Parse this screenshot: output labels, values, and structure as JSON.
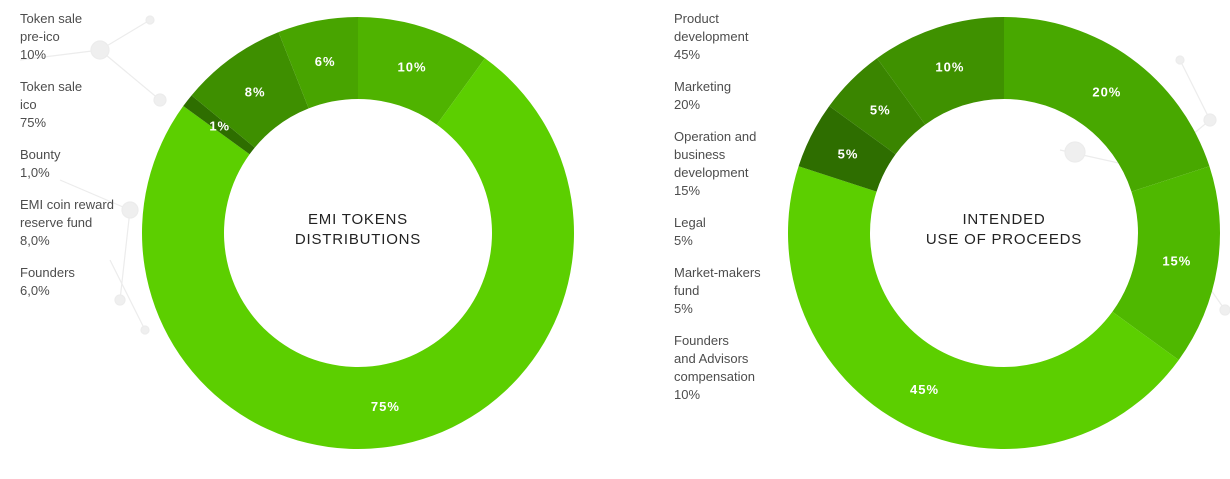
{
  "chart_data": [
    {
      "type": "pie",
      "title_lines": [
        "EMI  TOKENS",
        "DISTRIBUTIONS"
      ],
      "slices": [
        {
          "label": "10%",
          "value": 10,
          "color": "#4fb300"
        },
        {
          "label": "75%",
          "value": 75,
          "color": "#5ccf00"
        },
        {
          "label": "1%",
          "value": 1,
          "color": "#2e6e00"
        },
        {
          "label": "8%",
          "value": 8,
          "color": "#3e8f00"
        },
        {
          "label": "6%",
          "value": 6,
          "color": "#48a400"
        }
      ],
      "legend": [
        {
          "lines": [
            "Token sale",
            "pre-ico"
          ],
          "value": "10%"
        },
        {
          "lines": [
            "Token sale",
            "ico"
          ],
          "value": "75%"
        },
        {
          "lines": [
            "Bounty"
          ],
          "value": "1,0%"
        },
        {
          "lines": [
            "EMI coin reward",
            "reserve fund"
          ],
          "value": "8,0%"
        },
        {
          "lines": [
            "Founders"
          ],
          "value": "6,0%"
        }
      ]
    },
    {
      "type": "pie",
      "title_lines": [
        "INTENDED",
        "USE OF PROCEEDS"
      ],
      "slices": [
        {
          "label": "20%",
          "value": 20,
          "color": "#48a800"
        },
        {
          "label": "15%",
          "value": 15,
          "color": "#4fb800"
        },
        {
          "label": "45%",
          "value": 45,
          "color": "#5ccf00"
        },
        {
          "label": "5%",
          "value": 5,
          "color": "#2e6e00"
        },
        {
          "label": "5%",
          "value": 5,
          "color": "#3a8500"
        },
        {
          "label": "10%",
          "value": 10,
          "color": "#3f9100"
        }
      ],
      "legend": [
        {
          "lines": [
            "Product",
            "development"
          ],
          "value": "45%"
        },
        {
          "lines": [
            "Marketing"
          ],
          "value": "20%"
        },
        {
          "lines": [
            "Operation and",
            "business",
            "development"
          ],
          "value": "15%"
        },
        {
          "lines": [
            "Legal"
          ],
          "value": "5%"
        },
        {
          "lines": [
            "Market-makers",
            "fund"
          ],
          "value": "5%"
        },
        {
          "lines": [
            "Founders",
            "and Advisors",
            "compensation"
          ],
          "value": "10%"
        }
      ]
    }
  ]
}
